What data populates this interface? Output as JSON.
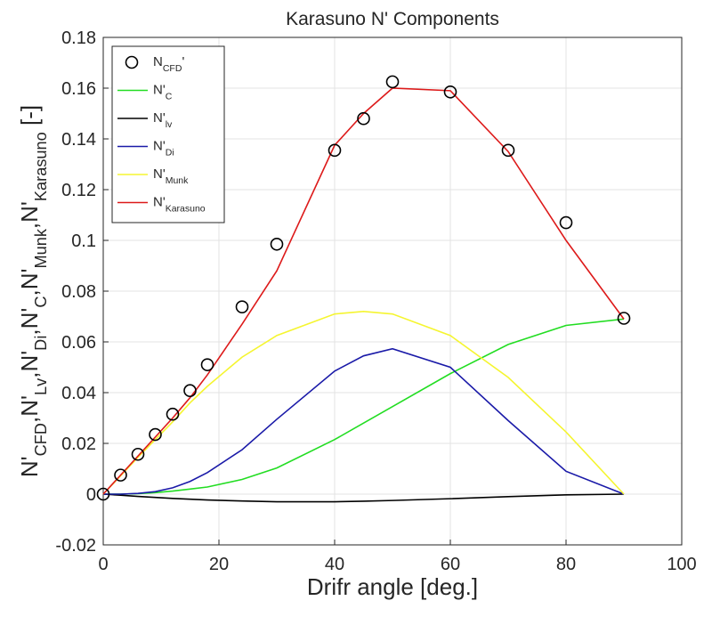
{
  "chart_data": {
    "type": "line",
    "title": "Karasuno N' Components",
    "xlabel": "Drifr angle [deg.]",
    "ylabel": "N'_{CFD},N'_{Lv},N'_{Di},N'_{C},N'_{Munk},N'_{Karasuno} [-]",
    "x": [
      0,
      3,
      6,
      9,
      12,
      15,
      18,
      24,
      30,
      40,
      45,
      50,
      60,
      70,
      80,
      90
    ],
    "series": [
      {
        "name": "N_{CFD}'",
        "style": "marker",
        "color": "#000000",
        "values": [
          0,
          0.0075,
          0.0157,
          0.0235,
          0.0315,
          0.0408,
          0.051,
          0.0738,
          0.0985,
          0.1355,
          0.148,
          0.1625,
          0.1585,
          0.1355,
          0.107,
          0.0693
        ]
      },
      {
        "name": "N'_{C}",
        "style": "line",
        "color": "#22dd22",
        "values": [
          0,
          0,
          0.0002,
          0.0006,
          0.0012,
          0.002,
          0.0028,
          0.0058,
          0.0103,
          0.0215,
          0.028,
          0.0345,
          0.0475,
          0.059,
          0.0665,
          0.069
        ]
      },
      {
        "name": "N'_{lv}",
        "style": "line",
        "color": "#000000",
        "values": [
          0,
          -0.0004,
          -0.0009,
          -0.0013,
          -0.0017,
          -0.002,
          -0.0023,
          -0.0027,
          -0.003,
          -0.003,
          -0.0028,
          -0.0025,
          -0.0018,
          -0.001,
          -0.0003,
          0
        ]
      },
      {
        "name": "N'_{Di}",
        "style": "line",
        "color": "#1a1aa8",
        "values": [
          0,
          0,
          0.0003,
          0.001,
          0.0025,
          0.005,
          0.0085,
          0.0175,
          0.0295,
          0.0485,
          0.0545,
          0.0573,
          0.05,
          0.029,
          0.009,
          0
        ]
      },
      {
        "name": "N'_{Munk}",
        "style": "line",
        "color": "#f5f530",
        "values": [
          0,
          0.0072,
          0.0145,
          0.0215,
          0.0285,
          0.036,
          0.0425,
          0.054,
          0.0625,
          0.071,
          0.072,
          0.071,
          0.0625,
          0.046,
          0.0245,
          0
        ]
      },
      {
        "name": "N'_{Karasuno}",
        "style": "line",
        "color": "#dd1a1a",
        "values": [
          0,
          0.0075,
          0.015,
          0.0225,
          0.03,
          0.038,
          0.047,
          0.067,
          0.088,
          0.1375,
          0.15,
          0.16,
          0.159,
          0.135,
          0.1,
          0.069
        ]
      }
    ],
    "xlim": [
      0,
      100
    ],
    "xticks": [
      0,
      20,
      40,
      60,
      80,
      100
    ],
    "ylim": [
      -0.02,
      0.18
    ],
    "yticks": [
      -0.02,
      0,
      0.02,
      0.04,
      0.06,
      0.08,
      0.1,
      0.12,
      0.14,
      0.16,
      0.18
    ],
    "grid": true,
    "legend": "upper left"
  }
}
